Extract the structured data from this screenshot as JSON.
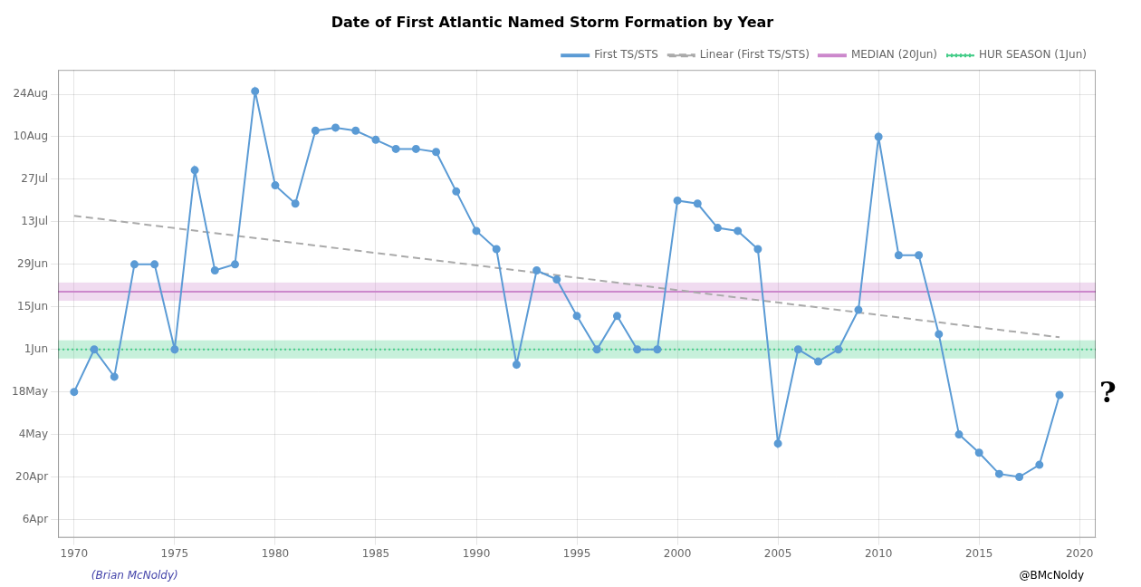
{
  "chart_data": {
    "type": "line",
    "title": "Date of First Atlantic Named Storm Formation by Year",
    "xlim": [
      1969.2,
      2020.8
    ],
    "ylim": [
      90,
      244
    ],
    "xticks": [
      1970,
      1975,
      1980,
      1985,
      1990,
      1995,
      2000,
      2005,
      2010,
      2015,
      2020
    ],
    "yticks": [
      {
        "value": 96,
        "label": "6Apr"
      },
      {
        "value": 110,
        "label": "20Apr"
      },
      {
        "value": 124,
        "label": "4May"
      },
      {
        "value": 138,
        "label": "18May"
      },
      {
        "value": 152,
        "label": "1Jun"
      },
      {
        "value": 166,
        "label": "15Jun"
      },
      {
        "value": 180,
        "label": "29Jun"
      },
      {
        "value": 194,
        "label": "13Jul"
      },
      {
        "value": 208,
        "label": "27Jul"
      },
      {
        "value": 222,
        "label": "10Aug"
      },
      {
        "value": 236,
        "label": "24Aug"
      }
    ],
    "grid": true,
    "legend": "upper right",
    "series": [
      {
        "name": "MEDIAN (20Jun)",
        "color": "#cc88cc",
        "line_style": "solid",
        "x": [
          1969.2,
          2020.8
        ],
        "values": [
          171,
          171
        ]
      },
      {
        "name": "HUR SEASON (1Jun)",
        "color": "#44cc88",
        "line_style": "dotted",
        "x": [
          1969.2,
          2020.8
        ],
        "values": [
          152,
          152
        ]
      },
      {
        "name": "First TS/STS",
        "color": "#5b9bd5",
        "line_style": "solid",
        "marker": "circle",
        "x": [
          1970,
          1971,
          1972,
          1973,
          1974,
          1975,
          1976,
          1977,
          1978,
          1979,
          1980,
          1981,
          1982,
          1983,
          1984,
          1985,
          1986,
          1987,
          1988,
          1989,
          1990,
          1991,
          1992,
          1993,
          1994,
          1995,
          1996,
          1997,
          1998,
          1999,
          2000,
          2001,
          2002,
          2003,
          2004,
          2005,
          2006,
          2007,
          2008,
          2009,
          2010,
          2011,
          2012,
          2013,
          2014,
          2015,
          2016,
          2017,
          2018,
          2019
        ],
        "values": [
          138,
          152,
          143,
          180,
          180,
          152,
          211,
          178,
          180,
          237,
          206,
          200,
          224,
          225,
          224,
          221,
          218,
          218,
          217,
          204,
          191,
          185,
          147,
          178,
          175,
          163,
          152,
          163,
          152,
          152,
          201,
          200,
          192,
          191,
          185,
          121,
          152,
          148,
          152,
          165,
          222,
          183,
          183,
          157,
          124,
          118,
          111,
          110,
          114,
          137
        ]
      },
      {
        "name": "Linear (First TS/STS)",
        "color": "#aaaaaa",
        "line_style": "dashed",
        "x": [
          1970,
          2019
        ],
        "values": [
          196,
          156
        ]
      }
    ],
    "bands": [
      {
        "from": 149,
        "to": 155,
        "color": "#44cc88"
      },
      {
        "from": 168,
        "to": 174,
        "color": "#cc88cc"
      }
    ],
    "annotations": [
      {
        "text": "?",
        "x": 2020.8,
        "y": 137
      },
      {
        "text": "(Brian McNoldy)",
        "color": "#4444aa"
      },
      {
        "text": "@BMcNoldy"
      }
    ]
  }
}
